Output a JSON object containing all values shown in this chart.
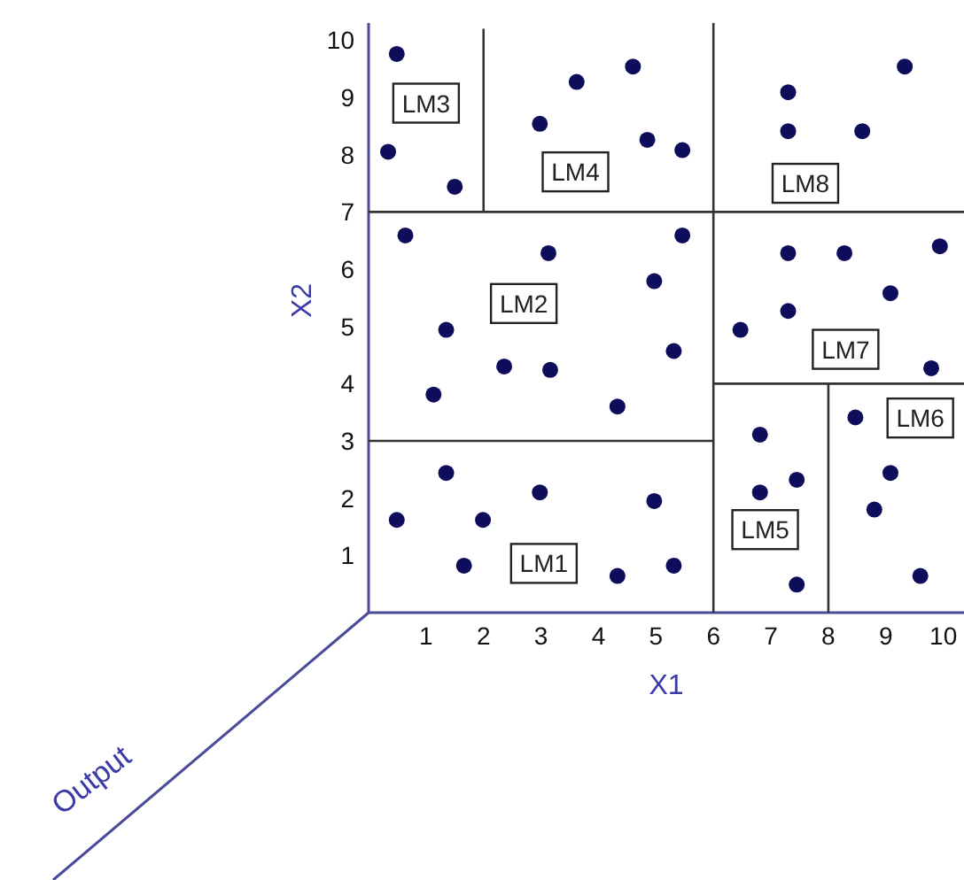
{
  "chart_data": {
    "type": "scatter",
    "xlabel": "X1",
    "ylabel": "X2",
    "xlim": [
      0,
      10.36
    ],
    "ylim": [
      0,
      10.3
    ],
    "xticks": [
      1,
      2,
      3,
      4,
      5,
      6,
      7,
      8,
      9,
      10
    ],
    "yticks": [
      1,
      2,
      3,
      4,
      5,
      6,
      7,
      8,
      9,
      10
    ],
    "marker": "circle",
    "series": [
      {
        "color": "#0d0d5c",
        "x": [
          0.49,
          0.34,
          1.5,
          2.98,
          3.62,
          4.6,
          4.85,
          5.46,
          7.3,
          7.3,
          8.59,
          9.33,
          0.64,
          1.35,
          1.13,
          2.36,
          3.13,
          3.16,
          4.33,
          4.97,
          5.46,
          5.31,
          6.47,
          7.3,
          7.3,
          8.28,
          9.08,
          9.94,
          9.79,
          8.47,
          0.49,
          1.35,
          1.99,
          1.66,
          2.98,
          4.33,
          4.97,
          5.31,
          6.81,
          6.81,
          7.45,
          7.45,
          9.08,
          8.8,
          9.6
        ],
        "values": [
          9.76,
          8.05,
          7.44,
          8.54,
          9.27,
          9.54,
          8.26,
          8.08,
          9.09,
          8.41,
          8.41,
          9.54,
          6.59,
          4.94,
          3.81,
          4.3,
          6.28,
          4.24,
          3.6,
          5.79,
          6.59,
          4.57,
          4.94,
          6.28,
          5.27,
          6.28,
          5.58,
          6.4,
          4.27,
          3.41,
          1.62,
          2.44,
          1.62,
          0.82,
          2.1,
          0.64,
          1.95,
          0.82,
          3.11,
          2.1,
          2.32,
          0.49,
          2.44,
          1.8,
          0.64
        ]
      },
      {
        "type": "line",
        "marker": "none",
        "color": "#333333",
        "x": [
          6,
          6
        ],
        "values": [
          0,
          10.3
        ]
      },
      {
        "type": "line",
        "marker": "none",
        "color": "#333333",
        "x": [
          0,
          10.36
        ],
        "values": [
          7,
          7
        ]
      },
      {
        "type": "line",
        "marker": "none",
        "color": "#333333",
        "x": [
          2,
          2
        ],
        "values": [
          7,
          10.2
        ]
      },
      {
        "type": "line",
        "marker": "none",
        "color": "#333333",
        "x": [
          0,
          6
        ],
        "values": [
          3,
          3
        ]
      },
      {
        "type": "line",
        "marker": "none",
        "color": "#333333",
        "x": [
          6,
          10.36
        ],
        "values": [
          4,
          4
        ]
      },
      {
        "type": "line",
        "marker": "none",
        "color": "#333333",
        "x": [
          8,
          8
        ],
        "values": [
          0,
          4
        ]
      }
    ],
    "annotations": [
      {
        "text": "LM3",
        "x": 1.0,
        "y": 8.9
      },
      {
        "text": "LM4",
        "x": 3.6,
        "y": 7.7
      },
      {
        "text": "LM8",
        "x": 7.6,
        "y": 7.5
      },
      {
        "text": "LM2",
        "x": 2.7,
        "y": 5.4
      },
      {
        "text": "LM7",
        "x": 8.3,
        "y": 4.6
      },
      {
        "text": "LM6",
        "x": 9.6,
        "y": 3.4
      },
      {
        "text": "LM5",
        "x": 6.9,
        "y": 1.45
      },
      {
        "text": "LM1",
        "x": 3.05,
        "y": 0.86
      },
      "Output"
    ]
  }
}
